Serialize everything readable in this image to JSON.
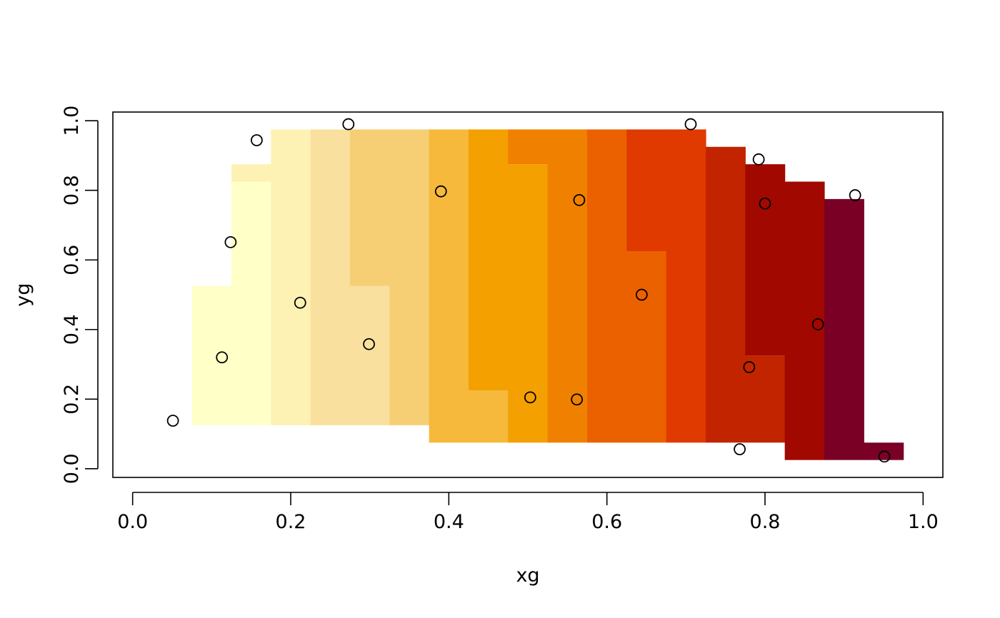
{
  "chart_data": {
    "type": "heatmap",
    "title": "",
    "xlabel": "xg",
    "ylabel": "yg",
    "xlim": [
      -0.025,
      1.025
    ],
    "ylim": [
      -0.025,
      1.025
    ],
    "x_ticks": [
      "0.0",
      "0.2",
      "0.4",
      "0.6",
      "0.8",
      "1.0"
    ],
    "y_ticks": [
      "0.0",
      "0.2",
      "0.4",
      "0.6",
      "0.8",
      "1.0"
    ],
    "grid": false,
    "legend": "none",
    "cell_size": 0.05,
    "palette": [
      "#FFFFC8",
      "#FDF2B4",
      "#FAE09E",
      "#F6CF74",
      "#F6B93C",
      "#F4A000",
      "#F08000",
      "#EB6100",
      "#E03A00",
      "#C22400",
      "#A10800",
      "#7A0026"
    ],
    "columns": [
      {
        "x": 0.1,
        "segments": [
          {
            "y0": 0.125,
            "y1": 0.525,
            "level": 0
          }
        ]
      },
      {
        "x": 0.15,
        "segments": [
          {
            "y0": 0.125,
            "y1": 0.825,
            "level": 0
          },
          {
            "y0": 0.825,
            "y1": 0.875,
            "level": 1
          }
        ]
      },
      {
        "x": 0.2,
        "segments": [
          {
            "y0": 0.125,
            "y1": 0.975,
            "level": 1
          }
        ]
      },
      {
        "x": 0.25,
        "segments": [
          {
            "y0": 0.125,
            "y1": 0.975,
            "level": 2
          }
        ]
      },
      {
        "x": 0.3,
        "segments": [
          {
            "y0": 0.125,
            "y1": 0.525,
            "level": 2
          },
          {
            "y0": 0.525,
            "y1": 0.975,
            "level": 3
          }
        ]
      },
      {
        "x": 0.35,
        "segments": [
          {
            "y0": 0.125,
            "y1": 0.975,
            "level": 3
          }
        ]
      },
      {
        "x": 0.4,
        "segments": [
          {
            "y0": 0.075,
            "y1": 0.975,
            "level": 4
          }
        ]
      },
      {
        "x": 0.45,
        "segments": [
          {
            "y0": 0.075,
            "y1": 0.225,
            "level": 4
          },
          {
            "y0": 0.225,
            "y1": 0.975,
            "level": 5
          }
        ]
      },
      {
        "x": 0.5,
        "segments": [
          {
            "y0": 0.075,
            "y1": 0.875,
            "level": 5
          },
          {
            "y0": 0.875,
            "y1": 0.975,
            "level": 6
          }
        ]
      },
      {
        "x": 0.55,
        "segments": [
          {
            "y0": 0.075,
            "y1": 0.975,
            "level": 6
          }
        ]
      },
      {
        "x": 0.6,
        "segments": [
          {
            "y0": 0.075,
            "y1": 0.975,
            "level": 7
          }
        ]
      },
      {
        "x": 0.65,
        "segments": [
          {
            "y0": 0.075,
            "y1": 0.625,
            "level": 7
          },
          {
            "y0": 0.625,
            "y1": 0.975,
            "level": 8
          }
        ]
      },
      {
        "x": 0.7,
        "segments": [
          {
            "y0": 0.075,
            "y1": 0.975,
            "level": 8
          }
        ]
      },
      {
        "x": 0.75,
        "segments": [
          {
            "y0": 0.075,
            "y1": 0.925,
            "level": 9
          }
        ]
      },
      {
        "x": 0.8,
        "segments": [
          {
            "y0": 0.075,
            "y1": 0.325,
            "level": 9
          },
          {
            "y0": 0.325,
            "y1": 0.875,
            "level": 10
          }
        ]
      },
      {
        "x": 0.85,
        "segments": [
          {
            "y0": 0.025,
            "y1": 0.825,
            "level": 10
          }
        ]
      },
      {
        "x": 0.9,
        "segments": [
          {
            "y0": 0.025,
            "y1": 0.775,
            "level": 11
          }
        ]
      },
      {
        "x": 0.95,
        "segments": [
          {
            "y0": 0.025,
            "y1": 0.075,
            "level": 11
          }
        ]
      }
    ],
    "points": [
      {
        "x": 0.051,
        "y": 0.138
      },
      {
        "x": 0.113,
        "y": 0.32
      },
      {
        "x": 0.124,
        "y": 0.651
      },
      {
        "x": 0.157,
        "y": 0.944
      },
      {
        "x": 0.212,
        "y": 0.477
      },
      {
        "x": 0.273,
        "y": 0.99
      },
      {
        "x": 0.299,
        "y": 0.358
      },
      {
        "x": 0.39,
        "y": 0.797
      },
      {
        "x": 0.503,
        "y": 0.205
      },
      {
        "x": 0.562,
        "y": 0.199
      },
      {
        "x": 0.565,
        "y": 0.772
      },
      {
        "x": 0.644,
        "y": 0.5
      },
      {
        "x": 0.706,
        "y": 0.99
      },
      {
        "x": 0.768,
        "y": 0.056
      },
      {
        "x": 0.78,
        "y": 0.292
      },
      {
        "x": 0.792,
        "y": 0.889
      },
      {
        "x": 0.8,
        "y": 0.762
      },
      {
        "x": 0.867,
        "y": 0.415
      },
      {
        "x": 0.914,
        "y": 0.786
      },
      {
        "x": 0.951,
        "y": 0.035
      }
    ]
  }
}
